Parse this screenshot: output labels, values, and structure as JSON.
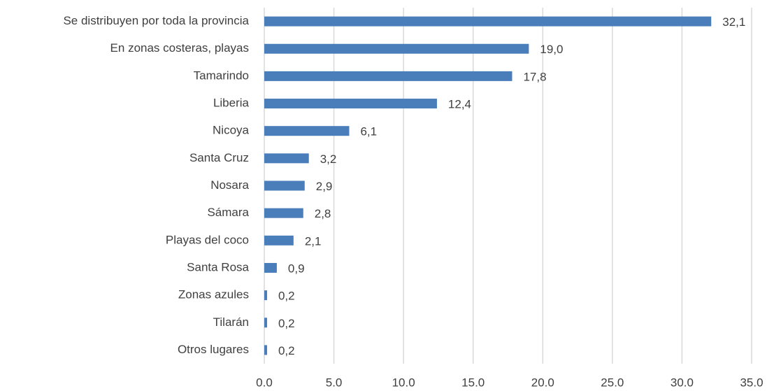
{
  "chart_data": {
    "type": "bar",
    "orientation": "horizontal",
    "categories": [
      "Se distribuyen por toda la provincia",
      "En zonas costeras, playas",
      "Tamarindo",
      "Liberia",
      "Nicoya",
      "Santa Cruz",
      "Nosara",
      "Sámara",
      "Playas del coco",
      "Santa Rosa",
      "Zonas azules",
      "Tilarán",
      "Otros lugares"
    ],
    "values": [
      32.1,
      19.0,
      17.8,
      12.4,
      6.1,
      3.2,
      2.9,
      2.8,
      2.1,
      0.9,
      0.2,
      0.2,
      0.2
    ],
    "value_labels": [
      "32,1",
      "19,0",
      "17,8",
      "12,4",
      "6,1",
      "3,2",
      "2,9",
      "2,8",
      "2,1",
      "0,9",
      "0,2",
      "0,2",
      "0,2"
    ],
    "color": "#4a7ebb",
    "xlim": [
      0,
      35
    ],
    "xticks": [
      {
        "value": 0,
        "label": "0.0"
      },
      {
        "value": 5,
        "label": "5.0"
      },
      {
        "value": 10,
        "label": "10.0"
      },
      {
        "value": 15,
        "label": "15.0"
      },
      {
        "value": 20,
        "label": "20.0"
      },
      {
        "value": 25,
        "label": "25.0"
      },
      {
        "value": 30,
        "label": "30.0"
      },
      {
        "value": 35,
        "label": "35.0"
      }
    ],
    "grid": true
  }
}
